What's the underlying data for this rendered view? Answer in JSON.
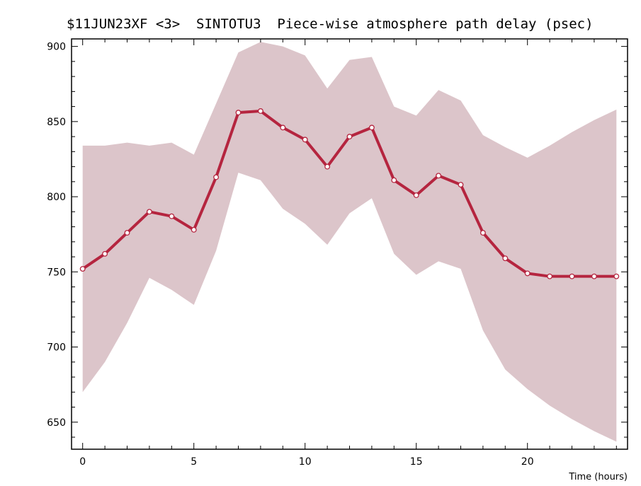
{
  "chart_data": {
    "type": "line",
    "title": "$11JUN23XF <3>  SINTOTU3  Piece-wise atmosphere path delay (psec)",
    "xlabel": "Time (hours)",
    "ylabel": "",
    "xlim": [
      -0.5,
      24.5
    ],
    "ylim": [
      632,
      905
    ],
    "xticks": [
      0,
      5,
      10,
      15,
      20
    ],
    "yticks": [
      650,
      700,
      750,
      800,
      850,
      900
    ],
    "grid": false,
    "x": [
      0,
      1,
      2,
      3,
      4,
      5,
      6,
      7,
      8,
      9,
      10,
      11,
      12,
      13,
      14,
      15,
      16,
      17,
      18,
      19,
      20,
      21,
      22,
      23,
      24
    ],
    "series": [
      {
        "values": [
          752,
          762,
          776,
          790,
          787,
          778,
          813,
          856,
          857,
          846,
          838,
          820,
          840,
          846,
          811,
          801,
          814,
          808,
          776,
          759,
          749,
          747,
          747,
          747,
          747
        ],
        "upper": [
          834,
          834,
          836,
          834,
          836,
          828,
          862,
          896,
          903,
          900,
          894,
          872,
          891,
          893,
          860,
          854,
          871,
          864,
          841,
          833,
          826,
          834,
          843,
          851,
          858
        ],
        "lower": [
          670,
          690,
          716,
          746,
          738,
          728,
          764,
          816,
          811,
          792,
          782,
          768,
          789,
          799,
          762,
          748,
          757,
          752,
          711,
          685,
          672,
          661,
          652,
          644,
          637
        ]
      }
    ],
    "colors": {
      "line": "#b5253f",
      "band": "#dcc5ca",
      "marker_fill": "#ffffff",
      "axis": "#000000"
    }
  }
}
